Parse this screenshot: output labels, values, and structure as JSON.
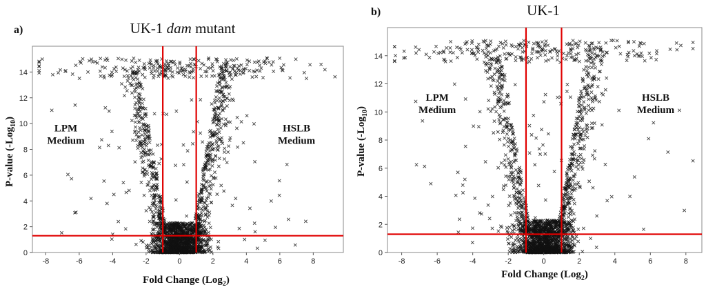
{
  "chart_data": [
    {
      "type": "scatter",
      "panel_label": "a)",
      "title": {
        "prefix": "UK-1 ",
        "italic": "dam",
        "suffix": " mutant"
      },
      "xlabel": "Fold Change (Log",
      "xlabel_sub": "2",
      "xlabel_end": ")",
      "ylabel": "P-value  (-Log",
      "ylabel_sub": "10",
      "ylabel_end": ")",
      "xlim": [
        -8.8,
        9.8
      ],
      "ylim": [
        0,
        16
      ],
      "xticks": [
        -8,
        -6,
        -4,
        -2,
        0,
        2,
        4,
        6,
        8
      ],
      "yticks": [
        0,
        2,
        4,
        6,
        8,
        10,
        12,
        14
      ],
      "thresholds": {
        "x": [
          -1,
          1
        ],
        "y": 1.3
      },
      "threshold_color": "#e00000",
      "marker": "x",
      "annotations": [
        {
          "lines": [
            "LPM",
            "Medium"
          ],
          "x": -6.8,
          "y": 9.4
        },
        {
          "lines": [
            "HSLB",
            "Medium"
          ],
          "x": 7.0,
          "y": 9.4
        }
      ],
      "seed": 11
    },
    {
      "type": "scatter",
      "panel_label": "b)",
      "title": {
        "prefix": "UK-1",
        "italic": "",
        "suffix": ""
      },
      "xlabel": "Fold Change (Log",
      "xlabel_sub": "2",
      "xlabel_end": ")",
      "ylabel": "P-value  (-Log",
      "ylabel_sub": "10",
      "ylabel_end": ")",
      "xlim": [
        -8.8,
        8.9
      ],
      "ylim": [
        0,
        16
      ],
      "xticks": [
        -8,
        -6,
        -4,
        -2,
        0,
        2,
        4,
        6,
        8
      ],
      "yticks": [
        0,
        2,
        4,
        6,
        8,
        10,
        12,
        14
      ],
      "thresholds": {
        "x": [
          -1,
          1
        ],
        "y": 1.3
      },
      "threshold_color": "#e00000",
      "marker": "x",
      "annotations": [
        {
          "lines": [
            "LPM",
            "Medium"
          ],
          "x": -6.0,
          "y": 10.8
        },
        {
          "lines": [
            "HSLB",
            "Medium"
          ],
          "x": 6.3,
          "y": 10.8
        }
      ],
      "seed": 29
    }
  ]
}
